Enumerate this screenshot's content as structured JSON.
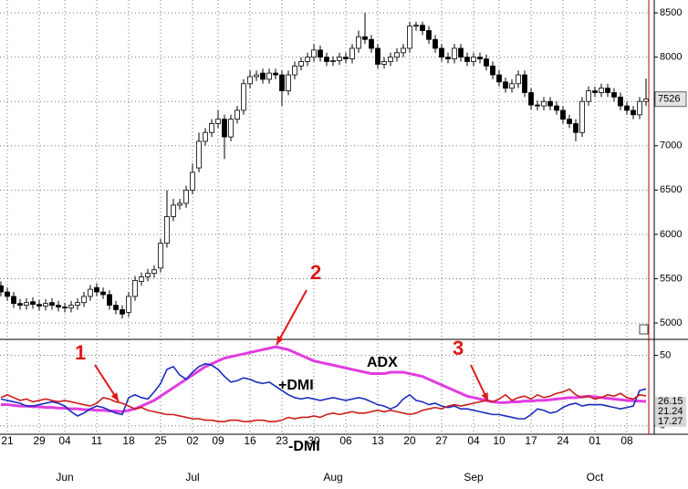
{
  "chart_data": [
    {
      "type": "candlestick",
      "categories": [
        null,
        "21",
        null,
        null,
        null,
        null,
        "29",
        null,
        null,
        null,
        "04",
        null,
        null,
        null,
        null,
        "11",
        null,
        null,
        null,
        null,
        "18",
        null,
        null,
        null,
        null,
        "25",
        null,
        null,
        null,
        null,
        "02",
        null,
        null,
        null,
        "09",
        null,
        null,
        null,
        null,
        "16",
        null,
        null,
        null,
        null,
        "23",
        null,
        null,
        null,
        null,
        "30",
        null,
        null,
        null,
        null,
        "06",
        null,
        null,
        null,
        null,
        "13",
        null,
        null,
        null,
        null,
        "20",
        null,
        null,
        null,
        null,
        "27",
        null,
        null,
        null,
        null,
        "04",
        null,
        null,
        null,
        "10",
        null,
        null,
        null,
        null,
        "17",
        null,
        null,
        null,
        null,
        "24",
        null,
        null,
        null,
        null,
        "01",
        null,
        null,
        null,
        null,
        "08",
        null,
        null,
        null
      ],
      "category_groups": [
        null,
        null,
        null,
        null,
        null,
        null,
        null,
        null,
        null,
        null,
        "Jun",
        null,
        null,
        null,
        null,
        null,
        null,
        null,
        null,
        null,
        null,
        null,
        null,
        null,
        null,
        null,
        null,
        null,
        null,
        null,
        "Jul",
        null,
        null,
        null,
        null,
        null,
        null,
        null,
        null,
        null,
        null,
        null,
        null,
        null,
        null,
        null,
        null,
        null,
        null,
        null,
        null,
        null,
        "Aug",
        null,
        null,
        null,
        null,
        null,
        null,
        null,
        null,
        null,
        null,
        null,
        null,
        null,
        null,
        null,
        null,
        null,
        null,
        null,
        null,
        null,
        "Sep",
        null,
        null,
        null,
        null,
        null,
        null,
        null,
        null,
        null,
        null,
        null,
        null,
        null,
        null,
        null,
        null,
        null,
        null,
        "Oct",
        null,
        null,
        null,
        null,
        null,
        null,
        null,
        null
      ],
      "open": [
        5420,
        5350,
        5300,
        5220,
        5200,
        5240,
        5210,
        5190,
        5230,
        5200,
        5180,
        5170,
        5200,
        5230,
        5300,
        5400,
        5350,
        5320,
        5200,
        5150,
        5120,
        5300,
        5470,
        5520,
        5560,
        5620,
        5900,
        6200,
        6330,
        6350,
        6500,
        6750,
        7050,
        7150,
        7250,
        7300,
        7100,
        7300,
        7400,
        7700,
        7780,
        7820,
        7750,
        7820,
        7800,
        7620,
        7800,
        7900,
        7950,
        8000,
        8080,
        8000,
        7950,
        7960,
        8000,
        7980,
        8100,
        8230,
        8200,
        8100,
        7920,
        7950,
        8000,
        8050,
        8100,
        8350,
        8360,
        8300,
        8200,
        8100,
        8000,
        7980,
        8100,
        8000,
        7950,
        8000,
        7980,
        7900,
        7800,
        7720,
        7650,
        7700,
        7800,
        7600,
        7460,
        7450,
        7500,
        7450,
        7400,
        7300,
        7250,
        7150,
        7500,
        7620,
        7600,
        7650,
        7600,
        7550,
        7450,
        7400,
        7350,
        7500
      ],
      "high": [
        5470,
        5400,
        5350,
        5270,
        5280,
        5290,
        5260,
        5270,
        5280,
        5250,
        5230,
        5250,
        5280,
        5350,
        5430,
        5450,
        5400,
        5370,
        5250,
        5200,
        5350,
        5530,
        5570,
        5610,
        5650,
        5950,
        6500,
        6400,
        6400,
        6550,
        6800,
        7150,
        7200,
        7300,
        7400,
        7350,
        7350,
        7450,
        7750,
        7850,
        7850,
        7870,
        7870,
        7870,
        7850,
        7850,
        7950,
        8000,
        8050,
        8150,
        8130,
        8050,
        8010,
        8050,
        8050,
        8150,
        8300,
        8500,
        8250,
        8150,
        8000,
        8050,
        8100,
        8150,
        8400,
        8400,
        8400,
        8350,
        8250,
        8150,
        8050,
        8150,
        8150,
        8050,
        8050,
        8050,
        8030,
        7950,
        7850,
        7770,
        7750,
        7850,
        7850,
        7650,
        7510,
        7550,
        7550,
        7500,
        7450,
        7350,
        7300,
        7550,
        7670,
        7670,
        7700,
        7700,
        7650,
        7600,
        7500,
        7450,
        7550,
        7760
      ],
      "low": [
        5300,
        5250,
        5170,
        5150,
        5150,
        5160,
        5140,
        5140,
        5150,
        5130,
        5120,
        5120,
        5150,
        5180,
        5250,
        5300,
        5270,
        5150,
        5100,
        5050,
        5070,
        5250,
        5420,
        5470,
        5510,
        5570,
        5850,
        6150,
        6280,
        6300,
        6450,
        6700,
        7000,
        7100,
        7200,
        6850,
        7050,
        7250,
        7350,
        7650,
        7730,
        7700,
        7700,
        7750,
        7450,
        7570,
        7750,
        7850,
        7900,
        7950,
        7950,
        7900,
        7900,
        7910,
        7930,
        7930,
        8050,
        8150,
        8050,
        7870,
        7870,
        7900,
        7950,
        8000,
        8050,
        8300,
        8250,
        8150,
        8050,
        7950,
        7930,
        7930,
        7950,
        7900,
        7900,
        7930,
        7850,
        7750,
        7670,
        7600,
        7600,
        7650,
        7550,
        7410,
        7400,
        7400,
        7400,
        7350,
        7250,
        7200,
        7050,
        7100,
        7450,
        7550,
        7550,
        7550,
        7500,
        7400,
        7350,
        7300,
        7300,
        7450
      ],
      "close": [
        5350,
        5300,
        5220,
        5200,
        5230,
        5210,
        5190,
        5220,
        5200,
        5180,
        5170,
        5200,
        5230,
        5300,
        5380,
        5350,
        5320,
        5200,
        5150,
        5100,
        5300,
        5480,
        5520,
        5560,
        5600,
        5900,
        6200,
        6330,
        6350,
        6500,
        6700,
        7050,
        7150,
        7250,
        7300,
        7100,
        7300,
        7400,
        7700,
        7780,
        7800,
        7750,
        7820,
        7800,
        7620,
        7800,
        7900,
        7950,
        8000,
        8080,
        8000,
        7950,
        7960,
        8000,
        7980,
        8100,
        8230,
        8200,
        8100,
        7920,
        7950,
        8000,
        8050,
        8100,
        8350,
        8360,
        8300,
        8200,
        8100,
        8000,
        7980,
        8100,
        8000,
        7950,
        8000,
        7980,
        7900,
        7800,
        7720,
        7650,
        7700,
        7800,
        7600,
        7460,
        7450,
        7500,
        7450,
        7400,
        7300,
        7250,
        7150,
        7500,
        7620,
        7600,
        7650,
        7600,
        7550,
        7450,
        7400,
        7350,
        7500,
        7526
      ],
      "up_color": "#ffffff",
      "down_color": "#000000",
      "ylim": [
        4815,
        8645
      ],
      "yticks": [
        5000,
        5500,
        6000,
        6500,
        7000,
        7500,
        8000,
        8500
      ],
      "grid": true
    },
    {
      "type": "line",
      "series": [
        {
          "name": "ADX",
          "color": "#e23ce0",
          "values": [
            15,
            15,
            14.5,
            14,
            14,
            13.5,
            13.5,
            13,
            13,
            12.5,
            12.5,
            12,
            12,
            11.5,
            11.5,
            11,
            11,
            10.5,
            10.5,
            10,
            11,
            12,
            14,
            16,
            18,
            21,
            24,
            27,
            30,
            33,
            36,
            39,
            42,
            44,
            46,
            48,
            49,
            50,
            51,
            52,
            53,
            54,
            55,
            56,
            55,
            54,
            52,
            50,
            48,
            46,
            45,
            44,
            43,
            42,
            41,
            40,
            39,
            38,
            37,
            37,
            37,
            38,
            38,
            38,
            37,
            36,
            35,
            33,
            31,
            29,
            27,
            25,
            23,
            21,
            20,
            19,
            18,
            17,
            16.5,
            16.5,
            17,
            17,
            17.5,
            17.5,
            18,
            18,
            18.5,
            19,
            19.5,
            20,
            20,
            20.5,
            21,
            20.5,
            20,
            19.5,
            19,
            18.5,
            18,
            17.8,
            17.5,
            17.27
          ]
        },
        {
          "name": "+DMI",
          "color": "#1a2bbf",
          "values": [
            19,
            18,
            17,
            16,
            14,
            14,
            15,
            16,
            17,
            16,
            14,
            10,
            7,
            9,
            12,
            14,
            13,
            11,
            9,
            8,
            20,
            22,
            20,
            19,
            24,
            30,
            40,
            42,
            36,
            33,
            38,
            42,
            44,
            43,
            40,
            35,
            31,
            32,
            34,
            33,
            31,
            30,
            31,
            28,
            25,
            22,
            20,
            19,
            20,
            19,
            18,
            19,
            20,
            19,
            18,
            19,
            20,
            19,
            17,
            15,
            14,
            12,
            14,
            19,
            22,
            18,
            17,
            15,
            16,
            14,
            13,
            14,
            12,
            12,
            11,
            10,
            9,
            8,
            8,
            7,
            6,
            5,
            5,
            8,
            12,
            11,
            9,
            10,
            13,
            15,
            16,
            14,
            15,
            15,
            15,
            14,
            13,
            12,
            13,
            14,
            25,
            26.15
          ]
        },
        {
          "name": "-DMI",
          "color": "#cc1c1c",
          "values": [
            20,
            22,
            20,
            18,
            19,
            17,
            18,
            19,
            18,
            17,
            18,
            17,
            16,
            15,
            14,
            16,
            20,
            19,
            17,
            16,
            14,
            12,
            13,
            11,
            10,
            9,
            8,
            8,
            7,
            6,
            5,
            5,
            4,
            4,
            3,
            3,
            4,
            4,
            3,
            3,
            4,
            4,
            3,
            3,
            4,
            6,
            5,
            6,
            6,
            7,
            6,
            8,
            9,
            8,
            9,
            10,
            9,
            9,
            10,
            11,
            10,
            11,
            10,
            9,
            8,
            9,
            11,
            12,
            13,
            12,
            14,
            15,
            14,
            15,
            16,
            17,
            18,
            17,
            19,
            22,
            18,
            20,
            21,
            19,
            22,
            20,
            21,
            23,
            24,
            26,
            22,
            20,
            21,
            19,
            20,
            22,
            21,
            23,
            20,
            19,
            22,
            21.24
          ]
        }
      ],
      "annotations": [
        "1",
        "2",
        "3"
      ],
      "ylim": [
        -6,
        60
      ],
      "yticks": [
        0,
        50
      ],
      "grid": true
    }
  ]
}
